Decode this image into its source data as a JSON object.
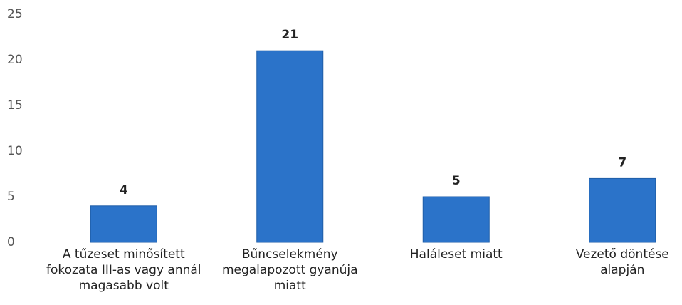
{
  "chart_data": {
    "type": "bar",
    "categories": [
      "A tűzeset minősített fokozata III-as vagy annál magasabb volt",
      "Bűncselekmény megalapozott gyanúja miatt",
      "Haláleset miatt",
      "Vezető döntése alapján"
    ],
    "values": [
      4,
      21,
      5,
      7
    ],
    "color": "#2b73c9",
    "ylim": [
      0,
      25
    ],
    "yticks": [
      0,
      5,
      10,
      15,
      20,
      25
    ],
    "grid": false
  }
}
